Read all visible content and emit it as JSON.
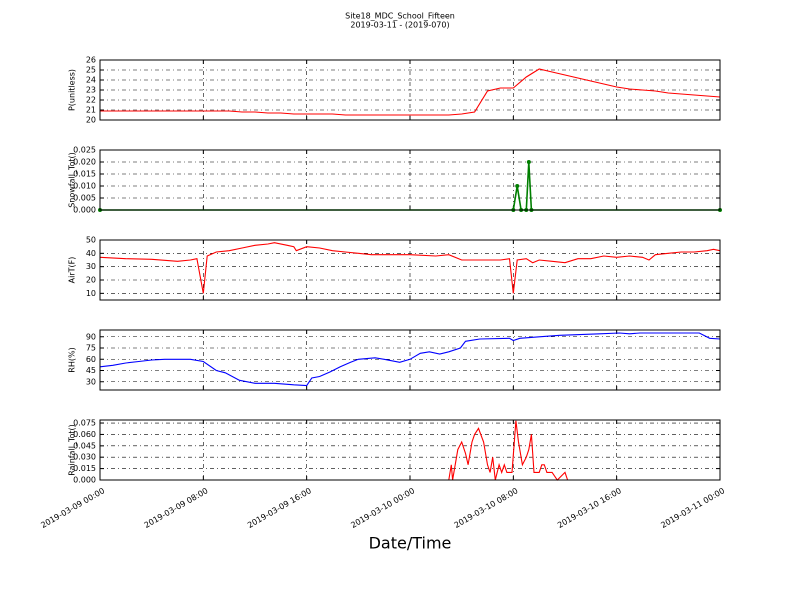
{
  "title": "Site18_MDC_School_Fifteen",
  "subtitle": "2019-03-11 - (2019-070)",
  "xlabel": "Date/Time",
  "chart_data": [
    {
      "type": "line",
      "ylabel": "P(unitless)",
      "xlim": [
        "2019-03-09 00:00",
        "2019-03-11 00:00"
      ],
      "xticks": [
        "2019-03-09 00:00",
        "2019-03-09 08:00",
        "2019-03-09 16:00",
        "2019-03-10 00:00",
        "2019-03-10 08:00",
        "2019-03-10 16:00",
        "2019-03-11 00:00"
      ],
      "ylim": [
        20,
        26
      ],
      "yticks": [
        20,
        21,
        22,
        23,
        24,
        25,
        26
      ],
      "grid": true,
      "x": [
        "2019-03-09 00:00",
        "2019-03-09 01:00",
        "2019-03-09 02:00",
        "2019-03-09 03:00",
        "2019-03-09 04:00",
        "2019-03-09 05:00",
        "2019-03-09 06:00",
        "2019-03-09 07:00",
        "2019-03-09 08:00",
        "2019-03-09 09:00",
        "2019-03-09 10:00",
        "2019-03-09 11:00",
        "2019-03-09 12:00",
        "2019-03-09 13:00",
        "2019-03-09 14:00",
        "2019-03-09 15:00",
        "2019-03-09 16:00",
        "2019-03-09 17:00",
        "2019-03-09 18:00",
        "2019-03-09 19:00",
        "2019-03-09 20:00",
        "2019-03-09 21:00",
        "2019-03-09 22:00",
        "2019-03-09 23:00",
        "2019-03-10 00:00",
        "2019-03-10 01:00",
        "2019-03-10 02:00",
        "2019-03-10 03:00",
        "2019-03-10 04:00",
        "2019-03-10 05:00",
        "2019-03-10 06:00",
        "2019-03-10 07:00",
        "2019-03-10 08:00",
        "2019-03-10 09:00",
        "2019-03-10 10:00",
        "2019-03-10 11:00",
        "2019-03-10 12:00",
        "2019-03-10 13:00",
        "2019-03-10 14:00",
        "2019-03-10 15:00",
        "2019-03-10 16:00",
        "2019-03-10 17:00",
        "2019-03-10 18:00",
        "2019-03-10 19:00",
        "2019-03-10 20:00",
        "2019-03-10 21:00",
        "2019-03-10 22:00",
        "2019-03-10 23:00",
        "2019-03-11 00:00"
      ],
      "series": [
        {
          "color": "#ff0000",
          "values": [
            20.9,
            20.9,
            20.9,
            20.9,
            20.9,
            20.9,
            20.9,
            20.9,
            20.9,
            20.9,
            20.9,
            20.8,
            20.8,
            20.7,
            20.7,
            20.6,
            20.6,
            20.6,
            20.6,
            20.5,
            20.5,
            20.5,
            20.5,
            20.5,
            20.5,
            20.5,
            20.5,
            20.5,
            20.6,
            20.8,
            22.9,
            23.2,
            23.2,
            24.3,
            25.1,
            24.8,
            24.5,
            24.2,
            23.9,
            23.6,
            23.3,
            23.1,
            23.0,
            22.9,
            22.7,
            22.6,
            22.5,
            22.4,
            22.3
          ]
        }
      ]
    },
    {
      "type": "line",
      "ylabel": "Snowfall_Tot()",
      "xlim": [
        "2019-03-09 00:00",
        "2019-03-11 00:00"
      ],
      "xticks": [
        "2019-03-09 00:00",
        "2019-03-09 08:00",
        "2019-03-09 16:00",
        "2019-03-10 00:00",
        "2019-03-10 08:00",
        "2019-03-10 16:00",
        "2019-03-11 00:00"
      ],
      "ylim": [
        0,
        0.025
      ],
      "yticks": [
        {
          "value": 0,
          "label": "0.000"
        },
        {
          "value": 0.005,
          "label": "0.005"
        },
        {
          "value": 0.01,
          "label": "0.010"
        },
        {
          "value": 0.015,
          "label": "0.015"
        },
        {
          "value": 0.02,
          "label": "0.020"
        },
        {
          "value": 0.025,
          "label": "0.025"
        }
      ],
      "grid": true,
      "marker": "o",
      "x": [
        "2019-03-09 00:00",
        "2019-03-10 08:00",
        "2019-03-10 08:18",
        "2019-03-10 08:36",
        "2019-03-10 09:00",
        "2019-03-10 09:12",
        "2019-03-10 09:24",
        "2019-03-11 00:00"
      ],
      "series": [
        {
          "color": "#007f00",
          "values": [
            0,
            0,
            0.01,
            0,
            0,
            0.02,
            0,
            0
          ]
        }
      ]
    },
    {
      "type": "line",
      "ylabel": "AirT(F)",
      "xlim": [
        "2019-03-09 00:00",
        "2019-03-11 00:00"
      ],
      "xticks": [
        "2019-03-09 00:00",
        "2019-03-09 08:00",
        "2019-03-09 16:00",
        "2019-03-10 00:00",
        "2019-03-10 08:00",
        "2019-03-10 16:00",
        "2019-03-11 00:00"
      ],
      "ylim": [
        5,
        50
      ],
      "yticks": [
        10,
        20,
        30,
        40,
        50
      ],
      "grid": true,
      "x": [
        "2019-03-09 00:00",
        "2019-03-09 02:00",
        "2019-03-09 04:00",
        "2019-03-09 06:00",
        "2019-03-09 07:00",
        "2019-03-09 07:30",
        "2019-03-09 08:00",
        "2019-03-09 08:18",
        "2019-03-09 09:00",
        "2019-03-09 10:00",
        "2019-03-09 11:00",
        "2019-03-09 12:00",
        "2019-03-09 13:00",
        "2019-03-09 13:30",
        "2019-03-09 14:30",
        "2019-03-09 15:00",
        "2019-03-09 15:12",
        "2019-03-09 16:00",
        "2019-03-09 17:00",
        "2019-03-09 18:00",
        "2019-03-09 19:00",
        "2019-03-09 20:00",
        "2019-03-09 21:00",
        "2019-03-10 00:00",
        "2019-03-10 02:00",
        "2019-03-10 03:00",
        "2019-03-10 04:00",
        "2019-03-10 07:00",
        "2019-03-10 07:42",
        "2019-03-10 08:00",
        "2019-03-10 08:18",
        "2019-03-10 09:00",
        "2019-03-10 09:30",
        "2019-03-10 10:00",
        "2019-03-10 11:00",
        "2019-03-10 12:00",
        "2019-03-10 13:00",
        "2019-03-10 14:00",
        "2019-03-10 15:00",
        "2019-03-10 16:00",
        "2019-03-10 17:00",
        "2019-03-10 18:00",
        "2019-03-10 18:30",
        "2019-03-10 19:00",
        "2019-03-10 20:00",
        "2019-03-10 21:00",
        "2019-03-10 22:00",
        "2019-03-10 23:00",
        "2019-03-10 23:30",
        "2019-03-11 00:00"
      ],
      "series": [
        {
          "color": "#ff0000",
          "values": [
            37,
            36,
            35.5,
            34,
            35,
            36,
            10,
            38,
            41,
            42,
            44,
            46,
            47,
            48,
            46,
            45,
            42,
            45,
            44,
            42,
            41,
            40,
            39,
            39,
            38,
            39,
            35,
            35,
            36,
            10,
            35,
            36,
            33,
            35,
            34,
            33,
            36,
            36,
            38,
            37,
            38,
            37,
            35,
            39,
            40,
            41,
            41,
            42,
            43,
            42
          ]
        }
      ]
    },
    {
      "type": "line",
      "ylabel": "RH(%)",
      "xlim": [
        "2019-03-09 00:00",
        "2019-03-11 00:00"
      ],
      "xticks": [
        "2019-03-09 00:00",
        "2019-03-09 08:00",
        "2019-03-09 16:00",
        "2019-03-10 00:00",
        "2019-03-10 08:00",
        "2019-03-10 16:00",
        "2019-03-11 00:00"
      ],
      "ylim": [
        19,
        99
      ],
      "yticks": [
        30,
        45,
        60,
        75,
        90
      ],
      "grid": true,
      "x": [
        "2019-03-09 00:00",
        "2019-03-09 01:00",
        "2019-03-09 02:00",
        "2019-03-09 03:00",
        "2019-03-09 04:00",
        "2019-03-09 05:00",
        "2019-03-09 06:00",
        "2019-03-09 07:00",
        "2019-03-09 08:00",
        "2019-03-09 09:00",
        "2019-03-09 09:42",
        "2019-03-09 10:48",
        "2019-03-09 12:00",
        "2019-03-09 13:30",
        "2019-03-09 15:00",
        "2019-03-09 16:00",
        "2019-03-09 16:24",
        "2019-03-09 17:00",
        "2019-03-09 17:48",
        "2019-03-09 18:36",
        "2019-03-09 19:24",
        "2019-03-09 20:00",
        "2019-03-09 21:18",
        "2019-03-09 22:00",
        "2019-03-09 23:12",
        "2019-03-10 00:00",
        "2019-03-10 00:48",
        "2019-03-10 01:30",
        "2019-03-10 02:18",
        "2019-03-10 03:00",
        "2019-03-10 03:54",
        "2019-03-10 04:18",
        "2019-03-10 05:24",
        "2019-03-10 07:42",
        "2019-03-10 08:00",
        "2019-03-10 08:30",
        "2019-03-10 10:00",
        "2019-03-10 11:36",
        "2019-03-10 14:42",
        "2019-03-10 16:12",
        "2019-03-10 17:00",
        "2019-03-10 17:48",
        "2019-03-10 22:24",
        "2019-03-10 23:12",
        "2019-03-11 00:00"
      ],
      "series": [
        {
          "color": "#0000ff",
          "values": [
            50,
            52,
            55,
            57,
            59,
            60,
            60,
            60,
            57,
            45,
            42,
            32,
            28,
            28,
            26,
            25,
            35,
            37,
            43,
            50,
            56,
            60,
            62,
            60,
            56,
            60,
            68,
            70,
            67,
            70,
            75,
            84,
            87,
            88,
            85,
            88,
            90,
            92,
            94,
            95,
            94,
            95,
            95,
            88,
            87
          ]
        }
      ]
    },
    {
      "type": "line",
      "ylabel": "Rainfall_Tot()",
      "xlim": [
        "2019-03-09 00:00",
        "2019-03-11 00:00"
      ],
      "xticks": [
        {
          "value": "2019-03-09 00:00",
          "label": "2019-03-09 00:00"
        },
        {
          "value": "2019-03-09 08:00",
          "label": "2019-03-09 08:00"
        },
        {
          "value": "2019-03-09 16:00",
          "label": "2019-03-09 16:00"
        },
        {
          "value": "2019-03-10 00:00",
          "label": "2019-03-10 00:00"
        },
        {
          "value": "2019-03-10 08:00",
          "label": "2019-03-10 08:00"
        },
        {
          "value": "2019-03-10 16:00",
          "label": "2019-03-10 16:00"
        },
        {
          "value": "2019-03-11 00:00",
          "label": "2019-03-11 00:00"
        }
      ],
      "ylim": [
        0,
        0.079
      ],
      "yticks": [
        {
          "value": 0,
          "label": "0.000"
        },
        {
          "value": 0.015,
          "label": "0.015"
        },
        {
          "value": 0.03,
          "label": "0.030"
        },
        {
          "value": 0.045,
          "label": "0.045"
        },
        {
          "value": 0.06,
          "label": "0.060"
        },
        {
          "value": 0.075,
          "label": "0.075"
        }
      ],
      "grid": true,
      "x": [
        "2019-03-09 00:00",
        "2019-03-10 03:00",
        "2019-03-10 03:12",
        "2019-03-10 03:18",
        "2019-03-10 03:42",
        "2019-03-10 04:00",
        "2019-03-10 04:18",
        "2019-03-10 04:30",
        "2019-03-10 04:48",
        "2019-03-10 05:00",
        "2019-03-10 05:18",
        "2019-03-10 05:42",
        "2019-03-10 06:00",
        "2019-03-10 06:12",
        "2019-03-10 06:24",
        "2019-03-10 06:36",
        "2019-03-10 06:54",
        "2019-03-10 07:06",
        "2019-03-10 07:18",
        "2019-03-10 07:30",
        "2019-03-10 07:54",
        "2019-03-10 08:12",
        "2019-03-10 08:24",
        "2019-03-10 08:42",
        "2019-03-10 09:00",
        "2019-03-10 09:12",
        "2019-03-10 09:24",
        "2019-03-10 09:36",
        "2019-03-10 10:00",
        "2019-03-10 10:12",
        "2019-03-10 10:24",
        "2019-03-10 10:36",
        "2019-03-10 11:00",
        "2019-03-10 11:24",
        "2019-03-10 12:00",
        "2019-03-10 12:12",
        "2019-03-11 00:00"
      ],
      "series": [
        {
          "color": "#ff0000",
          "values": [
            0,
            0,
            0.02,
            0,
            0.04,
            0.05,
            0.035,
            0.02,
            0.05,
            0.06,
            0.068,
            0.05,
            0.02,
            0.01,
            0.03,
            0,
            0.02,
            0.01,
            0.02,
            0.01,
            0.01,
            0.078,
            0.05,
            0.02,
            0.03,
            0.04,
            0.06,
            0.01,
            0.01,
            0.02,
            0.02,
            0.01,
            0.01,
            0,
            0.01,
            0,
            0
          ]
        }
      ]
    }
  ]
}
